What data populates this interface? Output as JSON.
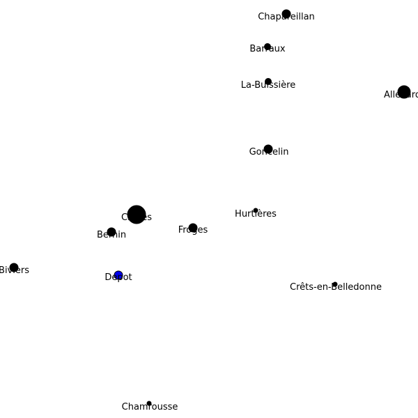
{
  "colors": {
    "background": "#ffffff",
    "node": "#000000",
    "depot": "#0000ee",
    "label": "#000000"
  },
  "nodes": [
    {
      "id": "chapareillan",
      "name": "Chapareillan",
      "size": "medium",
      "type": "town"
    },
    {
      "id": "barraux",
      "name": "Barraux",
      "size": "small",
      "type": "town"
    },
    {
      "id": "la-buissiere",
      "name": "La-Buissière",
      "size": "small",
      "type": "town"
    },
    {
      "id": "allevard",
      "name": "Allevard",
      "size": "large",
      "type": "town"
    },
    {
      "id": "goncelin",
      "name": "Goncelin",
      "size": "medium",
      "type": "town"
    },
    {
      "id": "hurtieres",
      "name": "Hurtières",
      "size": "tiny",
      "type": "town"
    },
    {
      "id": "crolles",
      "name": "Crolles",
      "size": "xlarge",
      "type": "town"
    },
    {
      "id": "froges",
      "name": "Froges",
      "size": "medium",
      "type": "town"
    },
    {
      "id": "bernin",
      "name": "Bernin",
      "size": "medium",
      "type": "town"
    },
    {
      "id": "biviers",
      "name": "Biviers",
      "size": "medium",
      "type": "town"
    },
    {
      "id": "depot",
      "name": "Depot",
      "size": "medium",
      "type": "depot"
    },
    {
      "id": "cretes-en-belledonne",
      "name": "Crêts-en-Belledonne",
      "size": "tiny",
      "type": "town"
    },
    {
      "id": "chamrousse",
      "name": "Chamrousse",
      "size": "tiny",
      "type": "town"
    }
  ]
}
